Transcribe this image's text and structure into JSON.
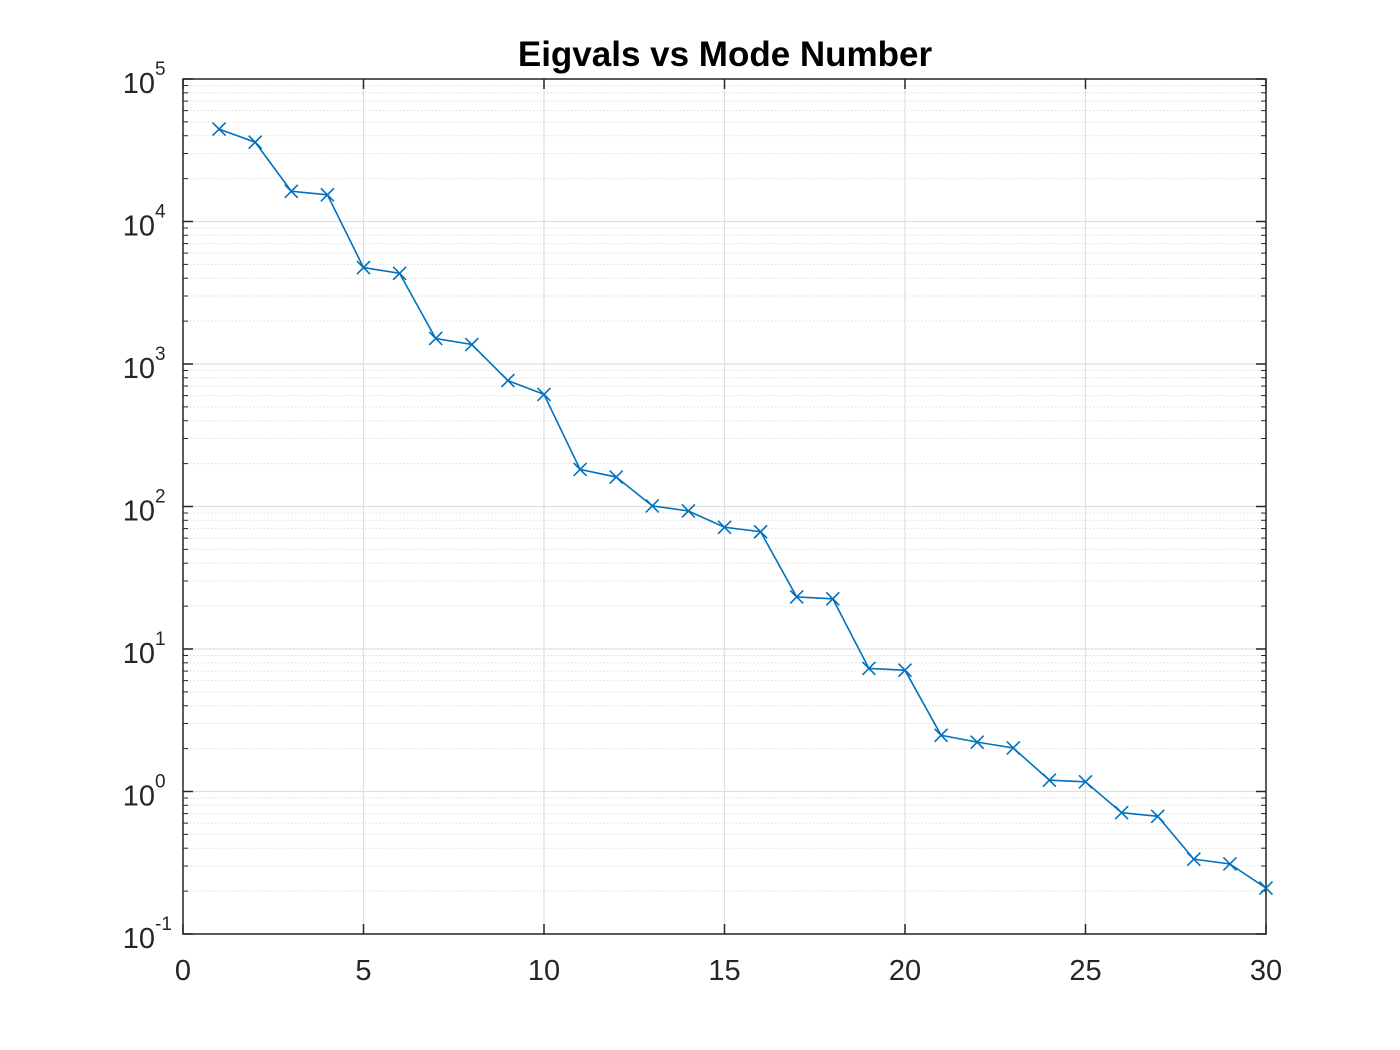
{
  "chart_data": {
    "type": "line",
    "title": "Eigvals vs Mode Number",
    "xlabel": "",
    "ylabel": "",
    "xlim": [
      0,
      30
    ],
    "ylim": [
      0.1,
      100000
    ],
    "yscale": "log",
    "grid": true,
    "minor_grid": true,
    "x_ticks": [
      "0",
      "5",
      "10",
      "15",
      "20",
      "25",
      "30"
    ],
    "x_tick_values": [
      0,
      5,
      10,
      15,
      20,
      25,
      30
    ],
    "y_ticks": [
      {
        "base": "10",
        "exp": "-1",
        "value": 0.1
      },
      {
        "base": "10",
        "exp": "0",
        "value": 1
      },
      {
        "base": "10",
        "exp": "1",
        "value": 10
      },
      {
        "base": "10",
        "exp": "2",
        "value": 100
      },
      {
        "base": "10",
        "exp": "3",
        "value": 1000
      },
      {
        "base": "10",
        "exp": "4",
        "value": 10000
      },
      {
        "base": "10",
        "exp": "5",
        "value": 100000
      }
    ],
    "series": [
      {
        "color": "#0072bd",
        "marker": "x",
        "x": [
          1,
          2,
          3,
          4,
          5,
          6,
          7,
          8,
          9,
          10,
          11,
          12,
          13,
          14,
          15,
          16,
          17,
          18,
          19,
          20,
          21,
          22,
          23,
          24,
          25,
          26,
          27,
          28,
          29,
          30
        ],
        "values": [
          44500,
          36000,
          16300,
          15400,
          4750,
          4330,
          1510,
          1370,
          765,
          612,
          182,
          161,
          101,
          93,
          71.5,
          66.5,
          23.2,
          22.5,
          7.3,
          7.1,
          2.48,
          2.22,
          2.02,
          1.2,
          1.17,
          0.71,
          0.67,
          0.335,
          0.31,
          0.21
        ]
      }
    ]
  }
}
